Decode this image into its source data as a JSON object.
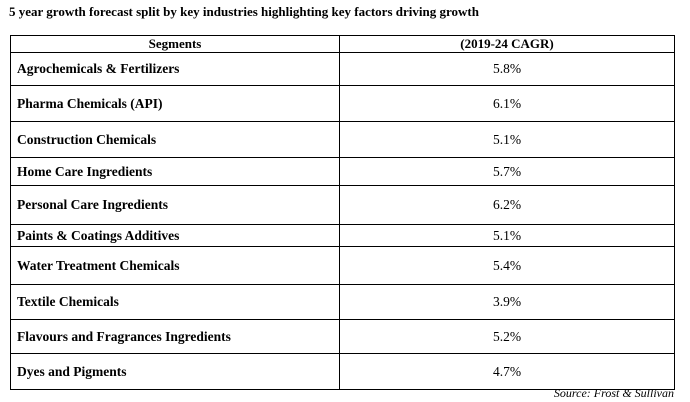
{
  "title": "5 year growth forecast split by key industries highlighting key factors driving growth",
  "table": {
    "headers": [
      "Segments",
      "(2019-24 CAGR)"
    ],
    "rows": [
      {
        "segment": "Agrochemicals & Fertilizers",
        "cagr": "5.8%"
      },
      {
        "segment": "Pharma Chemicals (API)",
        "cagr": "6.1%"
      },
      {
        "segment": "Construction Chemicals",
        "cagr": "5.1%"
      },
      {
        "segment": "Home Care Ingredients",
        "cagr": "5.7%"
      },
      {
        "segment": "Personal Care Ingredients",
        "cagr": "6.2%"
      },
      {
        "segment": "Paints & Coatings Additives",
        "cagr": "5.1%"
      },
      {
        "segment": "Water Treatment Chemicals",
        "cagr": "5.4%"
      },
      {
        "segment": "Textile Chemicals",
        "cagr": "3.9%"
      },
      {
        "segment": "Flavours and Fragrances Ingredients",
        "cagr": "5.2%"
      },
      {
        "segment": "Dyes and Pigments",
        "cagr": "4.7%"
      }
    ]
  },
  "source": "Source: Frost & Sullivan"
}
